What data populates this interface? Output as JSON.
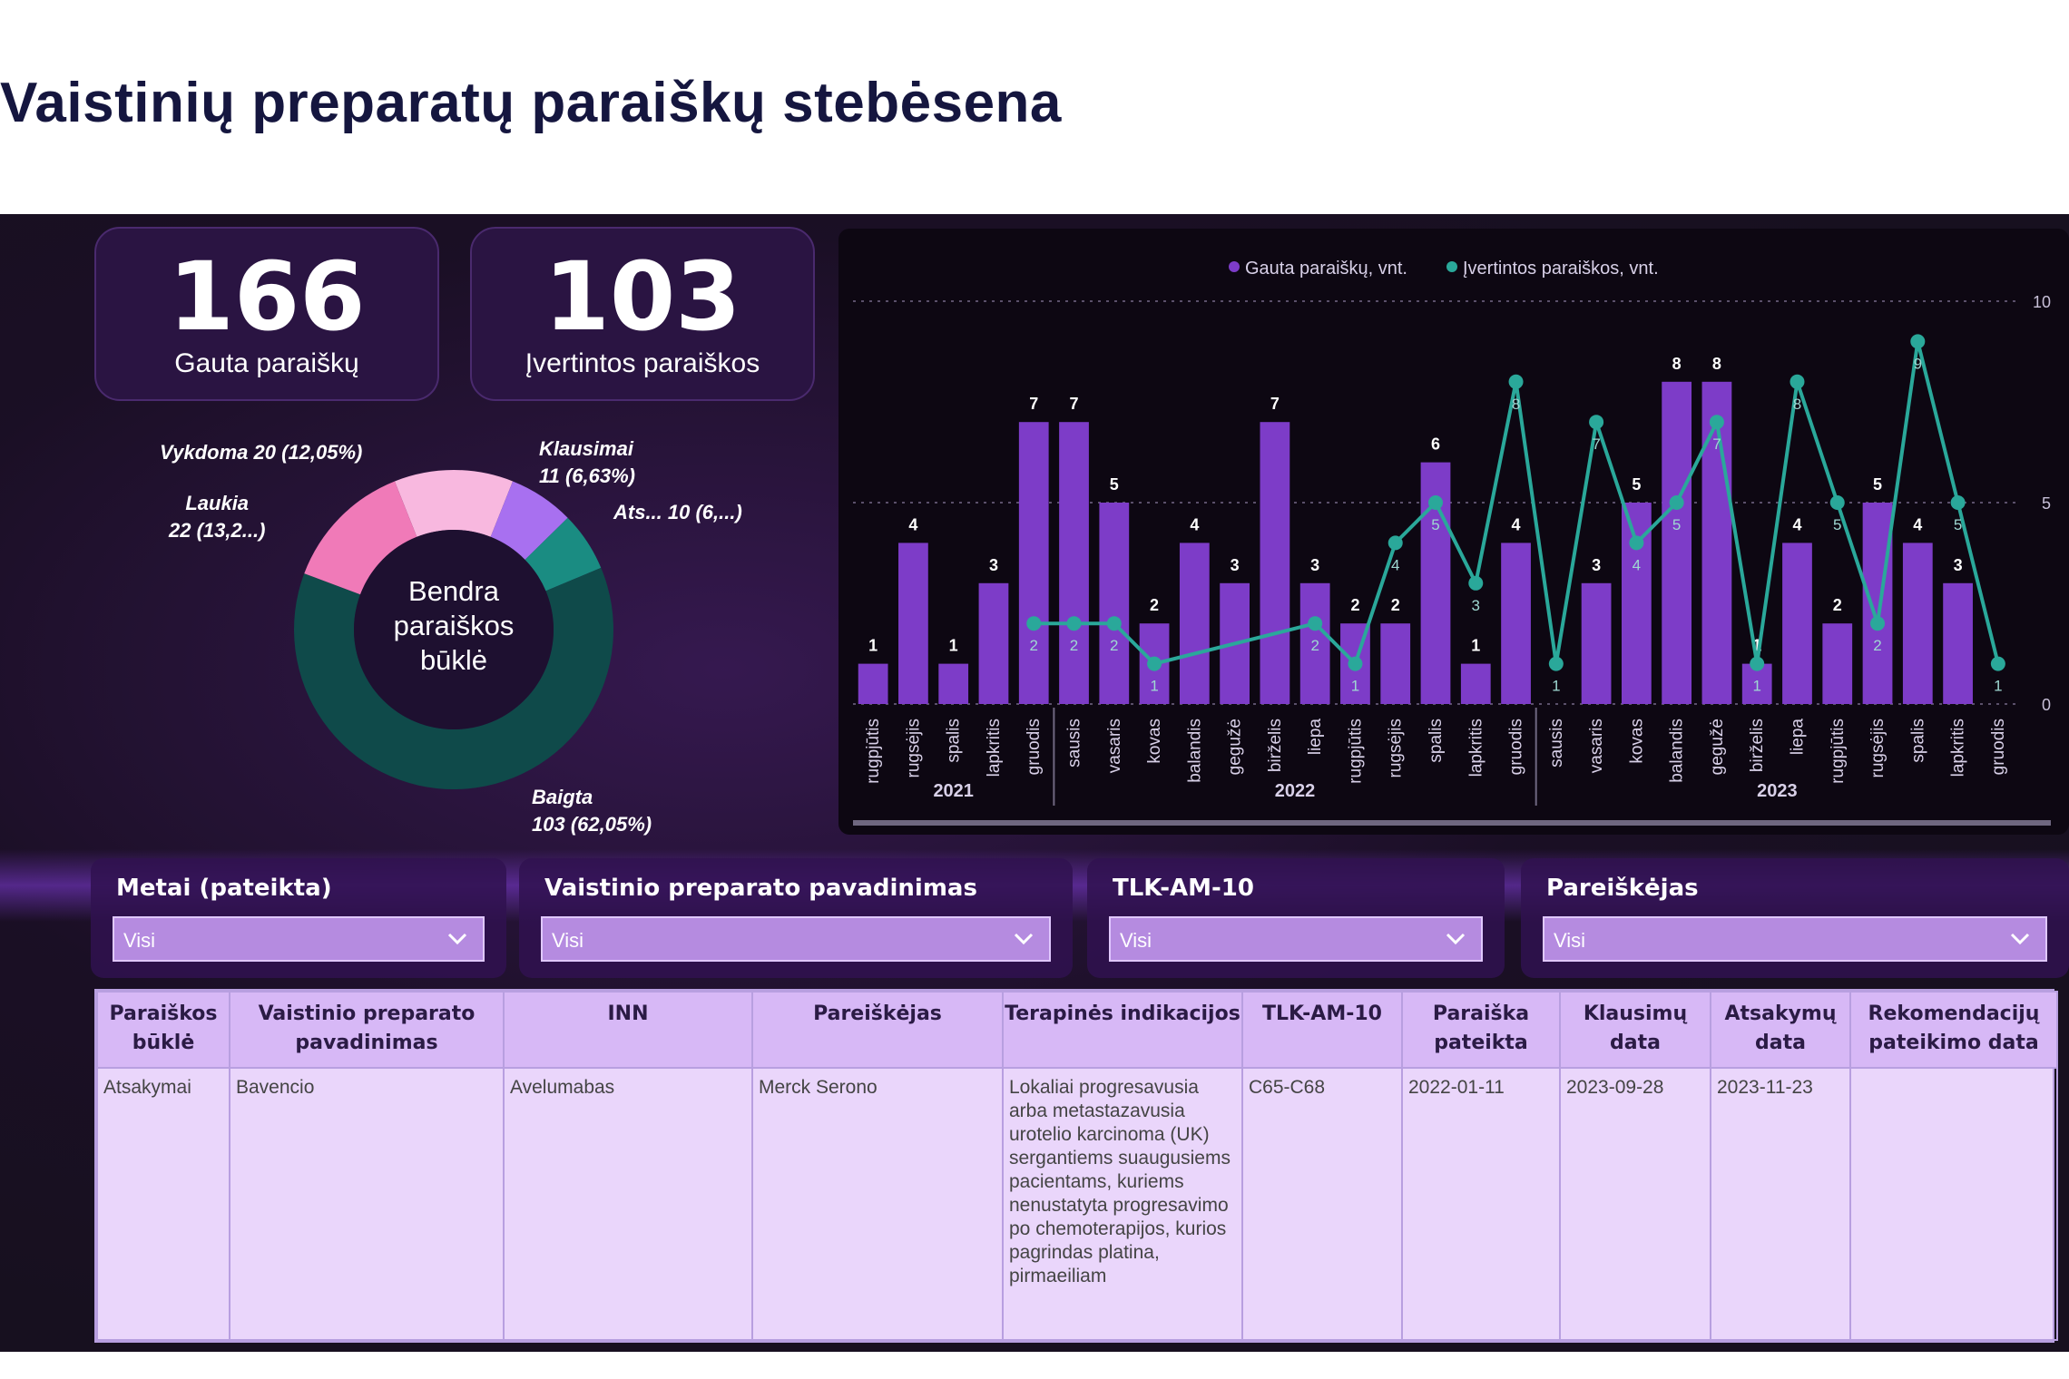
{
  "page": {
    "title": "Vaistinių preparatų paraiškų stebėsena"
  },
  "kpis": [
    {
      "value": "166",
      "label": "Gauta paraiškų"
    },
    {
      "value": "103",
      "label": "Įvertintos paraiškos"
    }
  ],
  "donut": {
    "center_label": [
      "Bendra",
      "paraiškos",
      "būklė"
    ],
    "segments": [
      {
        "name": "Baigta",
        "label": "Baigta\n103 (62,05%)",
        "value": 103,
        "color": "#0f4a4a"
      },
      {
        "name": "Laukia",
        "label": "Laukia\n22 (13,2...)",
        "value": 22,
        "color": "#f07ab8"
      },
      {
        "name": "Vykdoma",
        "label": "Vykdoma 20 (12,05%)",
        "value": 20,
        "color": "#f8b8df"
      },
      {
        "name": "Klausimai",
        "label": "Klausimai\n11 (6,63%)",
        "value": 11,
        "color": "#a870f0"
      },
      {
        "name": "Ats...",
        "label": "Ats... 10 (6,...)",
        "value": 10,
        "color": "#1a8c82"
      }
    ],
    "labels": {
      "vykdoma": "Vykdoma 20 (12,05%)",
      "laukia_1": "Laukia",
      "laukia_2": "22 (13,2...)",
      "klausimai_1": "Klausimai",
      "klausimai_2": "11 (6,63%)",
      "ats": "Ats... 10 (6,...)",
      "baigta_1": "Baigta",
      "baigta_2": "103 (62,05%)"
    }
  },
  "chart_data": {
    "type": "bar",
    "series": [
      {
        "name": "Gauta paraiškų, vnt.",
        "type": "bar",
        "color": "#7d3cc8",
        "values": [
          1,
          4,
          1,
          3,
          7,
          7,
          5,
          2,
          4,
          3,
          7,
          3,
          2,
          2,
          6,
          1,
          4,
          null,
          3,
          5,
          8,
          8,
          1,
          4,
          2,
          5,
          4,
          3,
          null
        ]
      },
      {
        "name": "Įvertintos paraiškos, vnt.",
        "type": "line",
        "color": "#2aa89a",
        "values": [
          null,
          null,
          null,
          null,
          2,
          2,
          2,
          1,
          null,
          null,
          null,
          2,
          1,
          4,
          5,
          3,
          8,
          1,
          7,
          4,
          5,
          7,
          1,
          8,
          5,
          2,
          9,
          5,
          1
        ]
      }
    ],
    "categories": [
      "rugpjūtis",
      "rugsėjis",
      "spalis",
      "lapkritis",
      "gruodis",
      "sausis",
      "vasaris",
      "kovas",
      "balandis",
      "gegužė",
      "birželis",
      "liepa",
      "rugpjūtis",
      "rugsėjis",
      "spalis",
      "lapkritis",
      "gruodis",
      "sausis",
      "vasaris",
      "kovas",
      "balandis",
      "gegužė",
      "birželis",
      "liepa",
      "rugpjūtis",
      "rugsėjis",
      "spalis",
      "lapkritis",
      "gruodis"
    ],
    "year_groups": [
      {
        "label": "2021",
        "start": 0,
        "end": 4
      },
      {
        "label": "2022",
        "start": 5,
        "end": 16
      },
      {
        "label": "2023",
        "start": 17,
        "end": 28
      }
    ],
    "ylim": [
      0,
      10
    ],
    "yticks_right": [
      "10",
      "5",
      "0"
    ],
    "grid": true,
    "legend_position": "top-center"
  },
  "filters": [
    {
      "title": "Metai (pateikta)",
      "value": "Visi"
    },
    {
      "title": "Vaistinio preparato pavadinimas",
      "value": "Visi"
    },
    {
      "title": "TLK-AM-10",
      "value": "Visi"
    },
    {
      "title": "Pareiškėjas",
      "value": "Visi"
    }
  ],
  "table": {
    "columns": [
      "Paraiškos būklė",
      "Vaistinio preparato pavadinimas",
      "INN",
      "Pareiškėjas",
      "Terapinės indikacijos",
      "TLK-AM-10",
      "Paraiška pateikta",
      "Klausimų data",
      "Atsakymų data",
      "Rekomendacijų pateikimo data"
    ],
    "rows": [
      [
        "Atsakymai",
        "Bavencio",
        "Avelumabas",
        "Merck Serono",
        "Lokaliai progresavusia arba metastazavusia urotelio karcinoma (UK) sergantiems suaugusiems pacientams, kuriems nenustatyta progresavimo po chemoterapijos, kurios pagrindas platina, pirmaeiliam",
        "C65-C68",
        "2022-01-11",
        "2023-09-28",
        "2023-11-23",
        ""
      ]
    ]
  }
}
